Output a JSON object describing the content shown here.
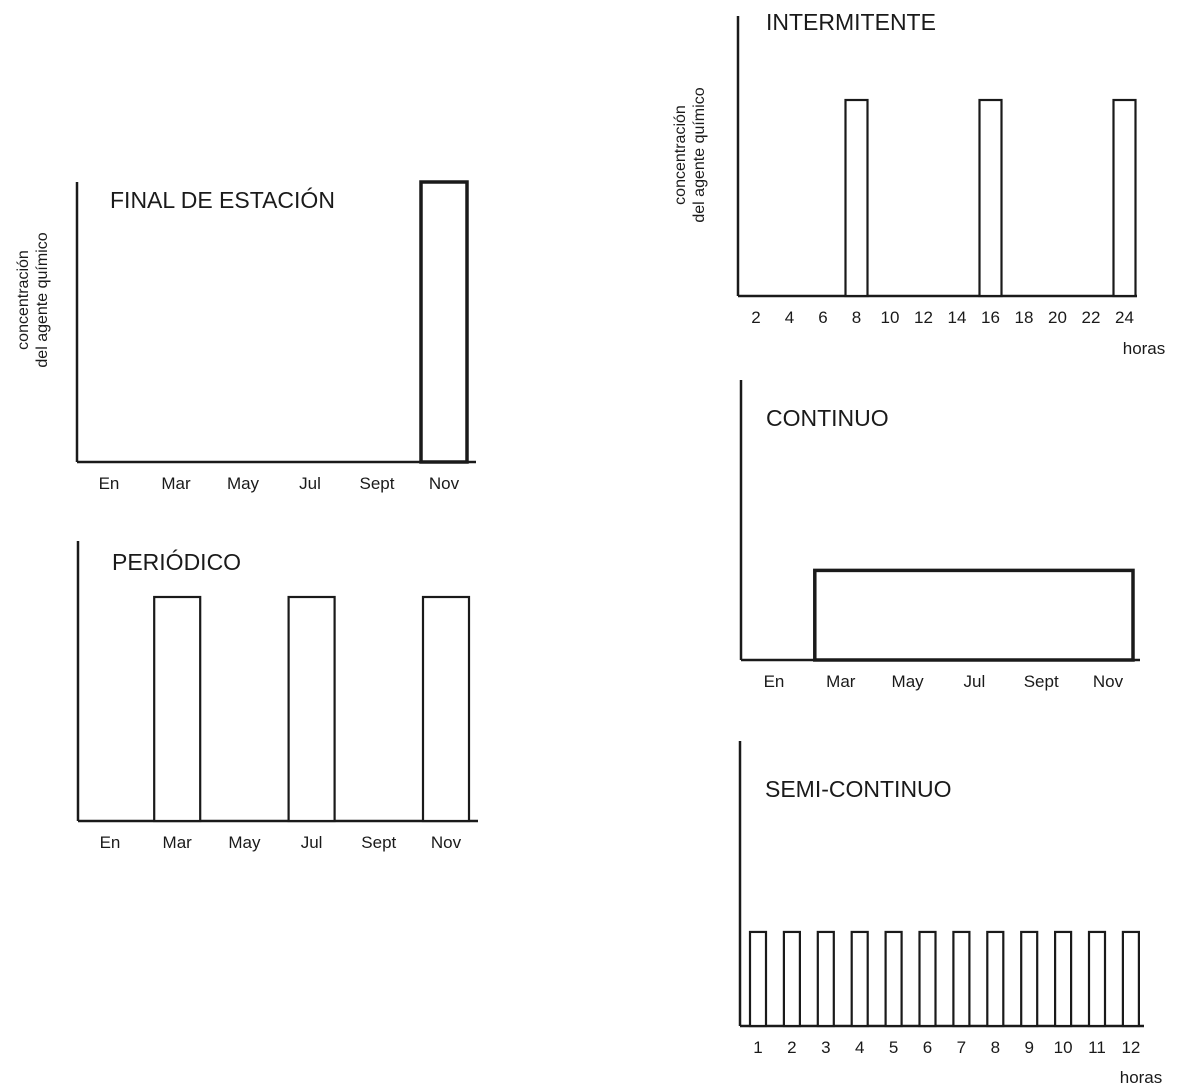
{
  "chart_data": [
    {
      "id": "final",
      "type": "bar",
      "title": "FINAL DE ESTACIÓN",
      "ylabel": [
        "concentración",
        "del agente químico"
      ],
      "xlabel": "",
      "categories": [
        "En",
        "Mar",
        "May",
        "Jul",
        "Sept",
        "Nov"
      ],
      "values": [
        0,
        0,
        0,
        0,
        0,
        1
      ],
      "ylim": [
        0,
        1
      ]
    },
    {
      "id": "periodico",
      "type": "bar",
      "title": "PERIÓDICO",
      "xlabel": "",
      "categories": [
        "En",
        "Mar",
        "May",
        "Jul",
        "Sept",
        "Nov"
      ],
      "values": [
        0,
        0.8,
        0,
        0.8,
        0,
        0.8
      ],
      "ylim": [
        0,
        1
      ]
    },
    {
      "id": "intermitente",
      "type": "bar",
      "title": "INTERMITENTE",
      "ylabel": [
        "concentración",
        "del agente químico"
      ],
      "xlabel": "horas",
      "categories": [
        "2",
        "4",
        "6",
        "8",
        "10",
        "12",
        "14",
        "16",
        "18",
        "20",
        "22",
        "24"
      ],
      "values": [
        0,
        0,
        0,
        0.7,
        0,
        0,
        0,
        0.7,
        0,
        0,
        0,
        0.7
      ],
      "ylim": [
        0,
        1
      ]
    },
    {
      "id": "continuo",
      "type": "area",
      "title": "CONTINUO",
      "xlabel": "",
      "categories": [
        "En",
        "Mar",
        "May",
        "Jul",
        "Sept",
        "Nov"
      ],
      "span": [
        "Mar",
        "Nov"
      ],
      "level": 0.32,
      "ylim": [
        0,
        1
      ]
    },
    {
      "id": "semicontinuo",
      "type": "bar",
      "title": "SEMI-CONTINUO",
      "xlabel": "horas",
      "categories": [
        "1",
        "2",
        "3",
        "4",
        "5",
        "6",
        "7",
        "8",
        "9",
        "10",
        "11",
        "12"
      ],
      "values": [
        0.33,
        0.33,
        0.33,
        0.33,
        0.33,
        0.33,
        0.33,
        0.33,
        0.33,
        0.33,
        0.33,
        0.33
      ],
      "ylim": [
        0,
        1
      ]
    }
  ]
}
